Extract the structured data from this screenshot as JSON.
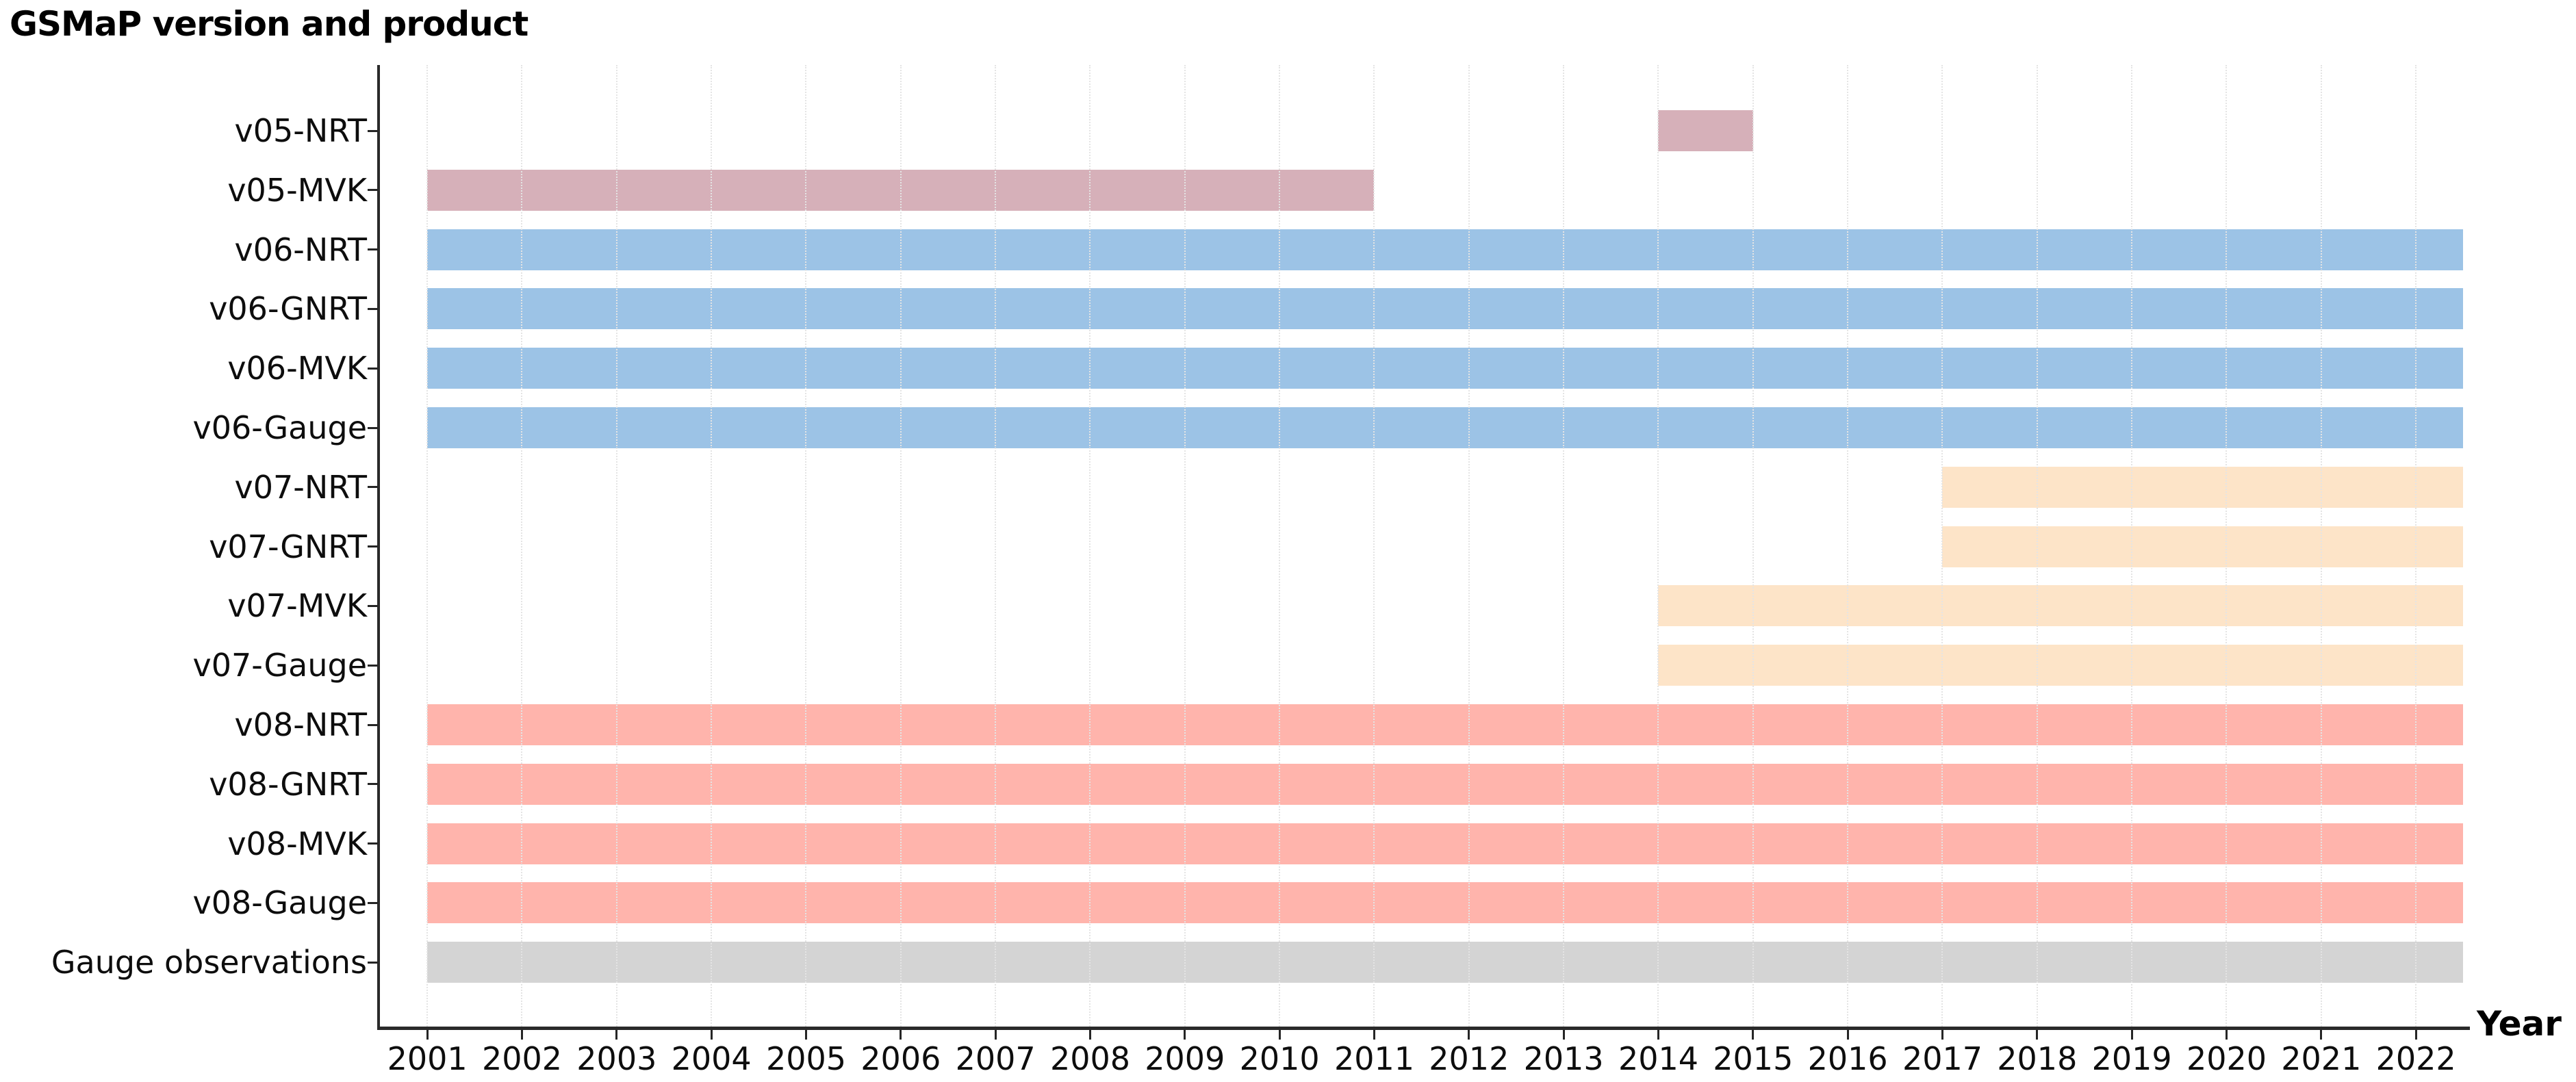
{
  "title": "GSMaP version and product",
  "x_axis": {
    "label": "Year"
  },
  "chart_data": {
    "type": "bar",
    "orientation": "horizontal",
    "title": "GSMaP version and product",
    "xlabel": "Year",
    "ylabel": "",
    "xlim": [
      2000.5,
      2022.57
    ],
    "x_ticks": [
      2001,
      2002,
      2003,
      2004,
      2005,
      2006,
      2007,
      2008,
      2009,
      2010,
      2011,
      2012,
      2013,
      2014,
      2015,
      2016,
      2017,
      2018,
      2019,
      2020,
      2021,
      2022
    ],
    "grid": "vertical dotted gridline at every year",
    "legend": "none",
    "rows": [
      {
        "label": "v05-NRT",
        "start": 2014,
        "end": 2015,
        "color": "#d6b0b9"
      },
      {
        "label": "v05-MVK",
        "start": 2001,
        "end": 2011,
        "color": "#d6b0b9"
      },
      {
        "label": "v06-NRT",
        "start": 2001,
        "end": 2022.5,
        "color": "#9cc3e6"
      },
      {
        "label": "v06-GNRT",
        "start": 2001,
        "end": 2022.5,
        "color": "#9cc3e6"
      },
      {
        "label": "v06-MVK",
        "start": 2001,
        "end": 2022.5,
        "color": "#9cc3e6"
      },
      {
        "label": "v06-Gauge",
        "start": 2001,
        "end": 2022.5,
        "color": "#9cc3e6"
      },
      {
        "label": "v07-NRT",
        "start": 2017,
        "end": 2022.5,
        "color": "#fde4c8"
      },
      {
        "label": "v07-GNRT",
        "start": 2017,
        "end": 2022.5,
        "color": "#fde4c8"
      },
      {
        "label": "v07-MVK",
        "start": 2014,
        "end": 2022.5,
        "color": "#fde4c8"
      },
      {
        "label": "v07-Gauge",
        "start": 2014,
        "end": 2022.5,
        "color": "#fde4c8"
      },
      {
        "label": "v08-NRT",
        "start": 2001,
        "end": 2022.5,
        "color": "#ffb4ac"
      },
      {
        "label": "v08-GNRT",
        "start": 2001,
        "end": 2022.5,
        "color": "#ffb4ac"
      },
      {
        "label": "v08-MVK",
        "start": 2001,
        "end": 2022.5,
        "color": "#ffb4ac"
      },
      {
        "label": "v08-Gauge",
        "start": 2001,
        "end": 2022.5,
        "color": "#ffb4ac"
      },
      {
        "label": "Gauge observations",
        "start": 2001,
        "end": 2022.5,
        "color": "#d4d4d4"
      }
    ],
    "colors": {
      "v05": "#d6b0b9",
      "v06": "#9cc3e6",
      "v07": "#fde4c8",
      "v08": "#ffb4ac",
      "gauge_observations": "#d4d4d4",
      "axis": "#262626",
      "grid": "#e4e4e4"
    }
  }
}
